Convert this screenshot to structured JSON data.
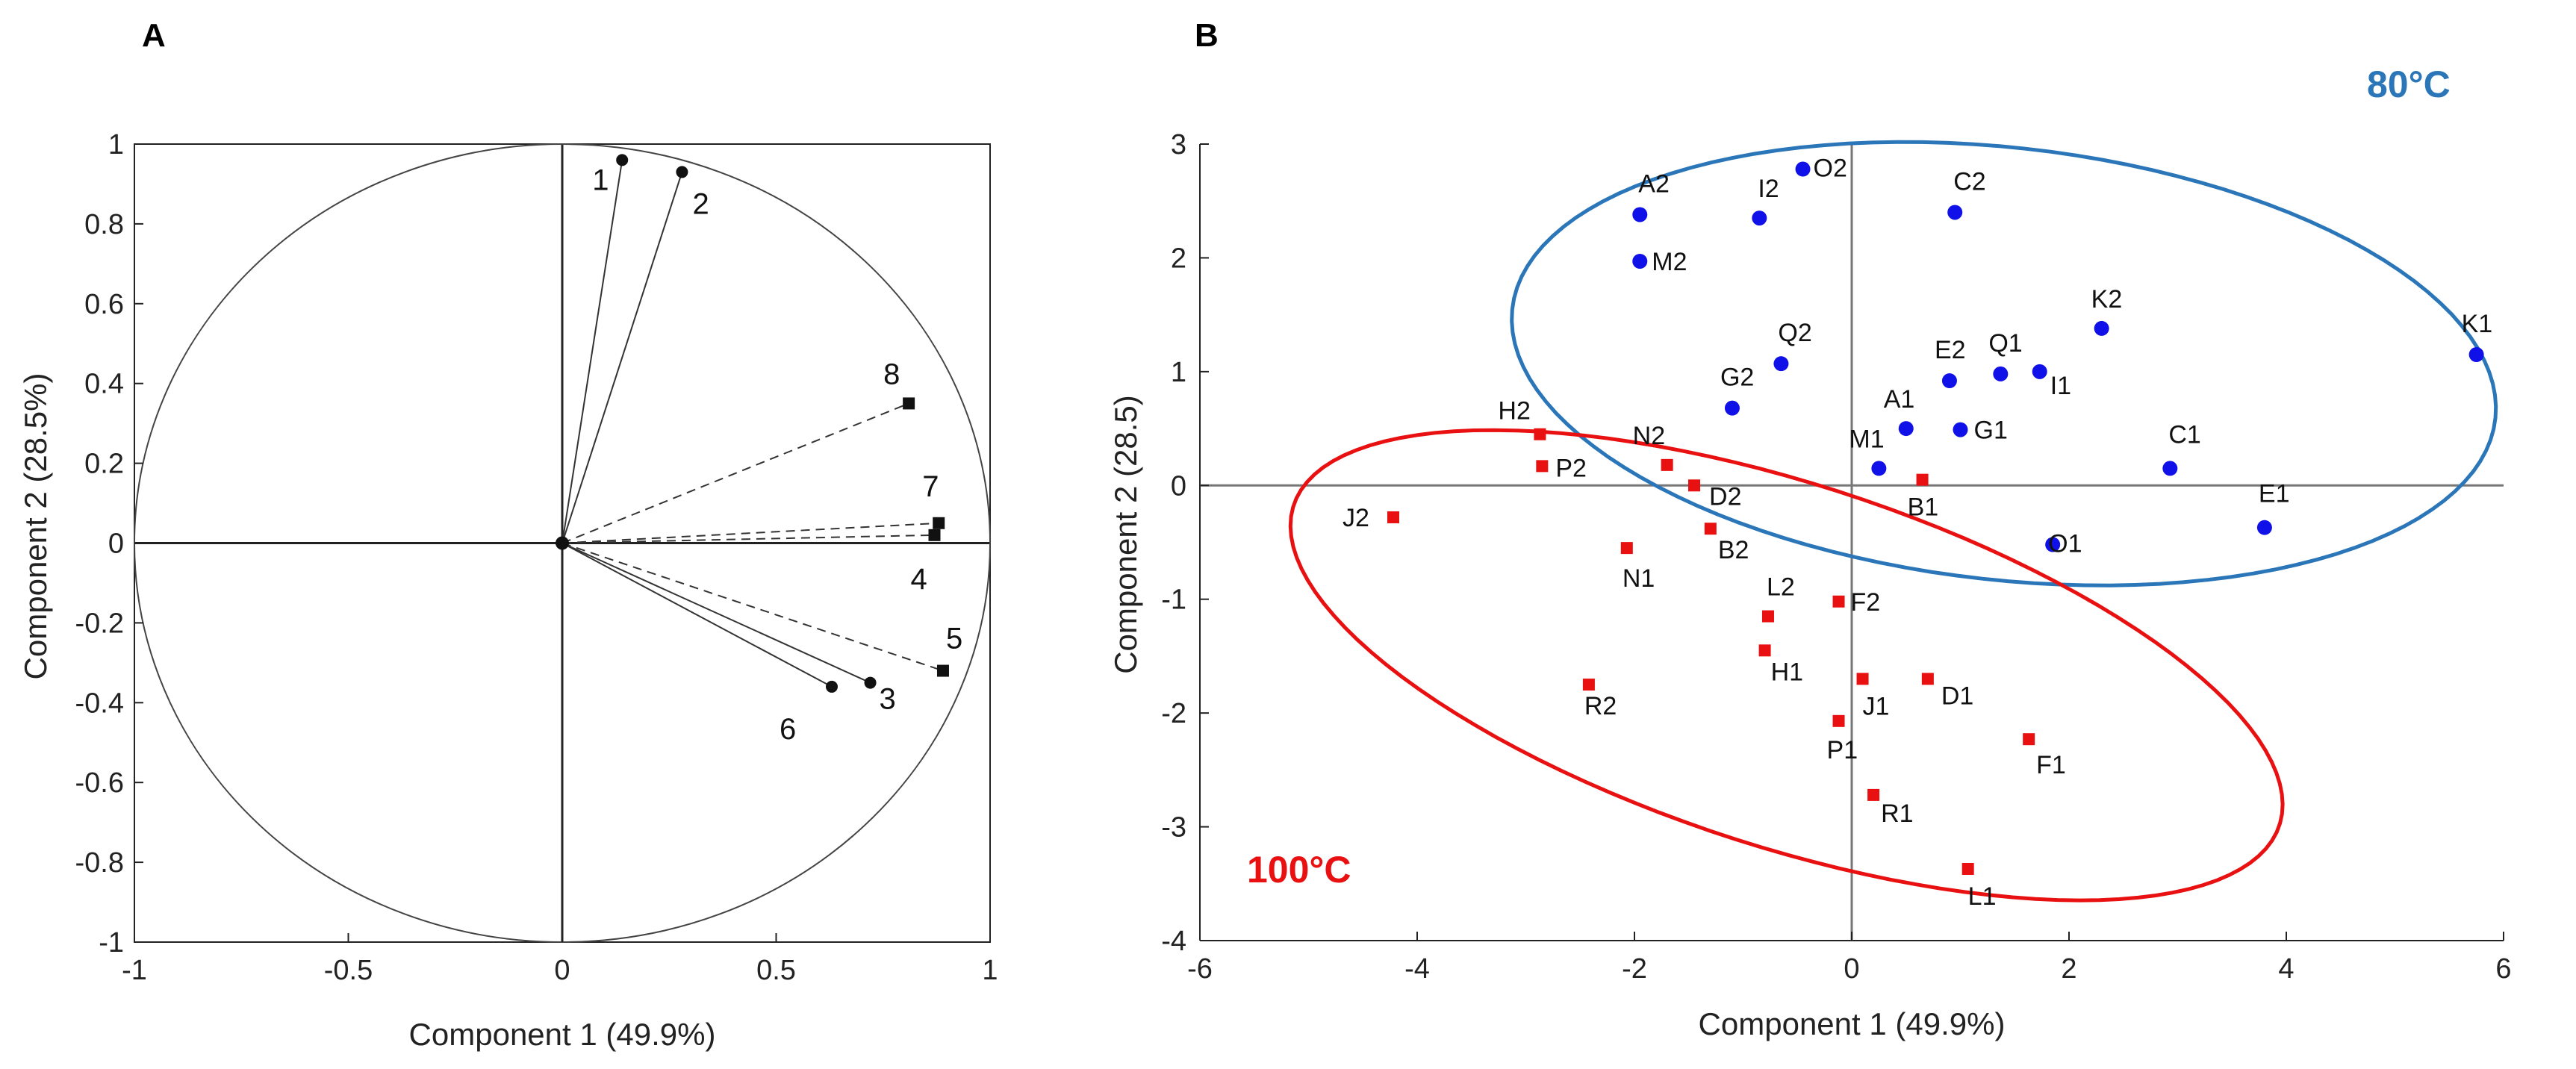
{
  "chart_data": [
    {
      "type": "scatter",
      "panel": "A",
      "subtype": "loading plot (correlation circle)",
      "xlabel": "Component 1 (49.9%)",
      "ylabel": "Component 2 (28.5%)",
      "xlim": [
        -1,
        1
      ],
      "ylim": [
        -1,
        1
      ],
      "x_ticks": [
        "-1",
        "-0.5",
        "0",
        "0.5",
        "1"
      ],
      "y_ticks": [
        "1",
        "0.8",
        "0.6",
        "0.4",
        "0.2",
        "0",
        "-0.2",
        "-0.4",
        "-0.6",
        "-0.8",
        "-1"
      ],
      "x_tick_values": [
        -1,
        -0.5,
        0,
        0.5,
        1
      ],
      "y_tick_values": [
        1,
        0.8,
        0.6,
        0.4,
        0.2,
        0,
        -0.2,
        -0.4,
        -0.6,
        -0.8,
        -1
      ],
      "unit_circle": true,
      "vectors": [
        {
          "label": "1",
          "x": 0.14,
          "y": 0.96,
          "style": "solid",
          "marker": "circle"
        },
        {
          "label": "2",
          "x": 0.28,
          "y": 0.93,
          "style": "solid",
          "marker": "circle"
        },
        {
          "label": "3",
          "x": 0.72,
          "y": -0.35,
          "style": "solid",
          "marker": "circle"
        },
        {
          "label": "6",
          "x": 0.63,
          "y": -0.36,
          "style": "solid",
          "marker": "circle"
        },
        {
          "label": "8",
          "x": 0.81,
          "y": 0.35,
          "style": "dashed",
          "marker": "square"
        },
        {
          "label": "7",
          "x": 0.88,
          "y": 0.05,
          "style": "dashed",
          "marker": "square"
        },
        {
          "label": "4",
          "x": 0.87,
          "y": 0.02,
          "style": "dashed",
          "marker": "square"
        },
        {
          "label": "5",
          "x": 0.89,
          "y": -0.32,
          "style": "dashed",
          "marker": "square"
        }
      ]
    },
    {
      "type": "scatter",
      "panel": "B",
      "subtype": "score plot",
      "xlabel": "Component 1 (49.9%)",
      "ylabel": "Component 2 (28.5)",
      "xlim": [
        -6,
        6
      ],
      "ylim": [
        -4,
        3
      ],
      "x_ticks": [
        "-6",
        "-4",
        "-2",
        "0",
        "2",
        "4",
        "6"
      ],
      "y_ticks": [
        "3",
        "2",
        "1",
        "0",
        "-1",
        "-2",
        "-3",
        "-4"
      ],
      "x_tick_values": [
        -6,
        -4,
        -2,
        0,
        2,
        4,
        6
      ],
      "y_tick_values": [
        3,
        2,
        1,
        0,
        -1,
        -2,
        -3,
        -4
      ],
      "series": [
        {
          "name": "80°C",
          "color": "#1010e8",
          "ellipse_color": "#2a76b8",
          "marker": "circle",
          "points": [
            {
              "label": "A2",
              "x": -1.95,
              "y": 2.38
            },
            {
              "label": "O2",
              "x": -0.45,
              "y": 2.78
            },
            {
              "label": "I2",
              "x": -0.85,
              "y": 2.35
            },
            {
              "label": "C2",
              "x": 0.95,
              "y": 2.4
            },
            {
              "label": "M2",
              "x": -1.95,
              "y": 1.97
            },
            {
              "label": "K2",
              "x": 2.3,
              "y": 1.38
            },
            {
              "label": "K1",
              "x": 5.75,
              "y": 1.15
            },
            {
              "label": "Q2",
              "x": -0.65,
              "y": 1.07
            },
            {
              "label": "E2",
              "x": 0.9,
              "y": 0.92
            },
            {
              "label": "Q1",
              "x": 1.37,
              "y": 0.98
            },
            {
              "label": "I1",
              "x": 1.73,
              "y": 1.0
            },
            {
              "label": "G2",
              "x": -1.1,
              "y": 0.68
            },
            {
              "label": "A1",
              "x": 0.5,
              "y": 0.5
            },
            {
              "label": "G1",
              "x": 1.0,
              "y": 0.49
            },
            {
              "label": "M1",
              "x": 0.25,
              "y": 0.15
            },
            {
              "label": "C1",
              "x": 2.93,
              "y": 0.15
            },
            {
              "label": "E1",
              "x": 3.8,
              "y": -0.37
            },
            {
              "label": "O1",
              "x": 1.85,
              "y": -0.52
            }
          ]
        },
        {
          "name": "100°C",
          "color": "#e81010",
          "ellipse_color": "#e81010",
          "marker": "square",
          "points": [
            {
              "label": "H2",
              "x": -2.87,
              "y": 0.45
            },
            {
              "label": "P2",
              "x": -2.85,
              "y": 0.17
            },
            {
              "label": "N2",
              "x": -1.7,
              "y": 0.18
            },
            {
              "label": "D2",
              "x": -1.45,
              "y": 0.0
            },
            {
              "label": "B1",
              "x": 0.65,
              "y": 0.05
            },
            {
              "label": "J2",
              "x": -4.22,
              "y": -0.28
            },
            {
              "label": "B2",
              "x": -1.3,
              "y": -0.38
            },
            {
              "label": "N1",
              "x": -2.07,
              "y": -0.55
            },
            {
              "label": "L2",
              "x": -0.77,
              "y": -1.15
            },
            {
              "label": "F2",
              "x": -0.12,
              "y": -1.02
            },
            {
              "label": "H1",
              "x": -0.8,
              "y": -1.45
            },
            {
              "label": "J1",
              "x": 0.1,
              "y": -1.7
            },
            {
              "label": "D1",
              "x": 0.7,
              "y": -1.7
            },
            {
              "label": "R2",
              "x": -2.42,
              "y": -1.75
            },
            {
              "label": "P1",
              "x": -0.12,
              "y": -2.07
            },
            {
              "label": "F1",
              "x": 1.63,
              "y": -2.23
            },
            {
              "label": "R1",
              "x": 0.2,
              "y": -2.72
            },
            {
              "label": "L1",
              "x": 1.07,
              "y": -3.37
            }
          ]
        }
      ],
      "ellipses": [
        {
          "group": "80°C",
          "cx": 1.4,
          "cy": 1.07,
          "rx": 4.55,
          "ry": 1.9,
          "angle_deg": -6
        },
        {
          "group": "100°C",
          "cx": -0.6,
          "cy": -1.58,
          "rx": 4.75,
          "ry": 1.6,
          "angle_deg": -17
        }
      ]
    }
  ],
  "labels": {
    "panel_a": "A",
    "panel_b": "B",
    "group_80": "80°C",
    "group_100": "100°C"
  }
}
